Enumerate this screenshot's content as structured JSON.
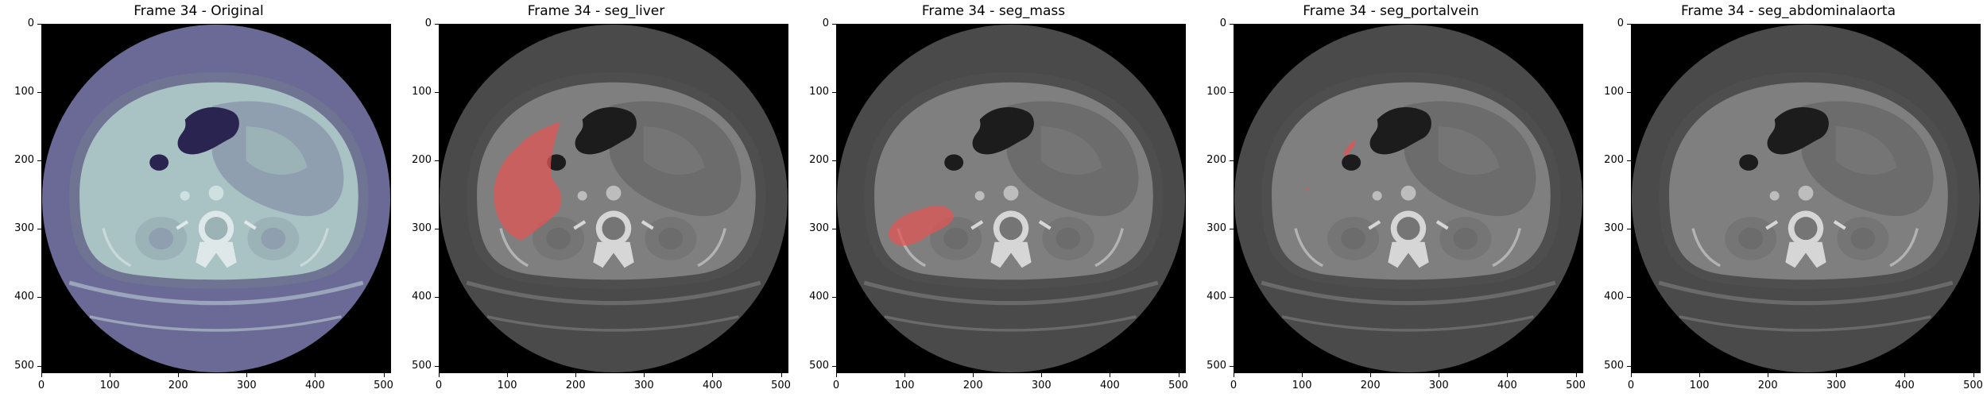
{
  "figure": {
    "panels": [
      {
        "title": "Frame 34 - Original",
        "overlay": "none",
        "colormap": "bone"
      },
      {
        "title": "Frame 34 - seg_liver",
        "overlay": "liver",
        "colormap": "gray"
      },
      {
        "title": "Frame 34 - seg_mass",
        "overlay": "mass",
        "colormap": "gray"
      },
      {
        "title": "Frame 34 - seg_portalvein",
        "overlay": "portalvein",
        "colormap": "gray"
      },
      {
        "title": "Frame 34 - seg_abdominalaorta",
        "overlay": "none",
        "colormap": "gray"
      }
    ],
    "x_ticks": [
      "0",
      "100",
      "200",
      "300",
      "400",
      "500"
    ],
    "y_ticks": [
      "0",
      "100",
      "200",
      "300",
      "400",
      "500"
    ],
    "image_extent": [
      0,
      511
    ],
    "overlay_color": "#e05555"
  }
}
